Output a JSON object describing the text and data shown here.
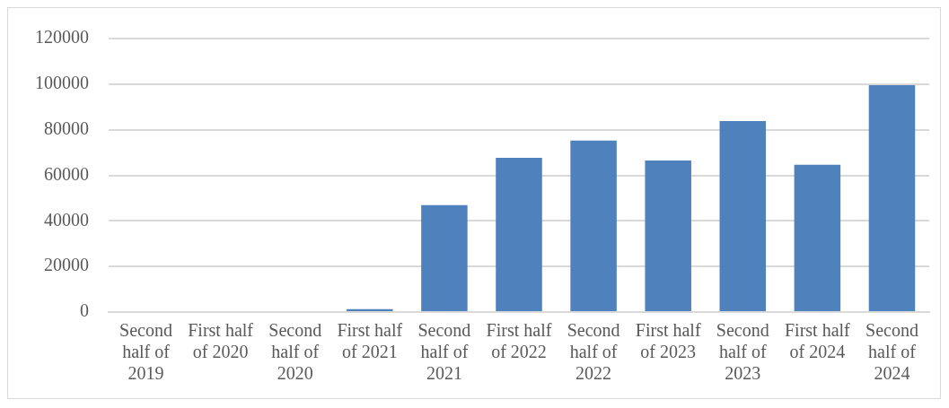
{
  "chart_data": {
    "type": "bar",
    "categories": [
      "Second half of 2019",
      "First half of 2020",
      "Second half of 2020",
      "First half of 2021",
      "Second half of 2021",
      "First half of 2022",
      "Second half of 2022",
      "First half of 2023",
      "Second half of 2023",
      "First half of 2024",
      "Second half of 2024"
    ],
    "values": [
      0,
      0,
      0,
      1300,
      46900,
      67700,
      75200,
      66500,
      83800,
      64600,
      99500
    ],
    "color": "#4f81bd",
    "ylim": [
      0,
      120000
    ],
    "yticks": [
      0,
      20000,
      40000,
      60000,
      80000,
      100000,
      120000
    ],
    "grid": "y",
    "legend": false
  }
}
